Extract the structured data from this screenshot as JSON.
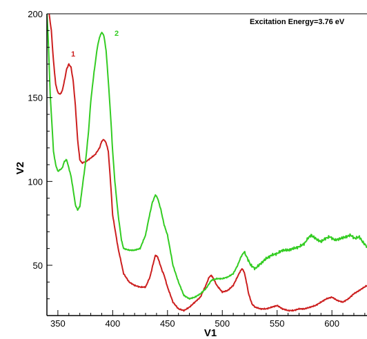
{
  "chart_data": {
    "type": "line",
    "title": "",
    "annotation": "Excitation Energy=3.76 eV",
    "xlabel": "V1",
    "ylabel": "V2",
    "xlim": [
      340,
      632
    ],
    "ylim": [
      20,
      200
    ],
    "x_ticks": [
      350,
      400,
      450,
      500,
      550,
      600
    ],
    "y_ticks": [
      50,
      100,
      150,
      200
    ],
    "grid": false,
    "series": [
      {
        "name": "1",
        "color": "#cc1f1f",
        "x": [
          342,
          344,
          346,
          348,
          350,
          352,
          354,
          356,
          358,
          360,
          362,
          364,
          366,
          368,
          370,
          372,
          376,
          380,
          384,
          388,
          390,
          392,
          394,
          396,
          398,
          400,
          405,
          410,
          415,
          420,
          425,
          430,
          434,
          437,
          439,
          441,
          443,
          445,
          447,
          450,
          455,
          460,
          465,
          470,
          475,
          480,
          485,
          488,
          490,
          492,
          495,
          500,
          505,
          510,
          513,
          516,
          518,
          520,
          522,
          524,
          527,
          530,
          535,
          540,
          545,
          550,
          555,
          560,
          565,
          570,
          575,
          580,
          585,
          590,
          595,
          600,
          605,
          610,
          615,
          620,
          625,
          632
        ],
        "y": [
          200,
          190,
          172,
          158,
          153,
          152,
          154,
          160,
          167,
          170,
          168,
          160,
          145,
          125,
          113,
          111,
          112,
          114,
          116,
          120,
          124,
          125,
          123,
          118,
          100,
          80,
          60,
          45,
          40,
          38,
          37,
          37,
          43,
          51,
          56,
          55,
          51,
          47,
          44,
          37,
          28,
          24,
          23,
          25,
          28,
          31,
          38,
          43,
          44,
          42,
          38,
          34,
          35,
          38,
          42,
          46,
          48,
          46,
          40,
          33,
          27,
          25,
          24,
          24,
          25,
          26,
          24,
          23,
          23,
          24,
          24,
          25,
          26,
          28,
          30,
          31,
          29,
          28,
          30,
          33,
          35,
          38
        ]
      },
      {
        "name": "2",
        "color": "#33cc22",
        "x": [
          340,
          341,
          342,
          343,
          344,
          345,
          346,
          348,
          350,
          352,
          354,
          356,
          358,
          360,
          362,
          364,
          366,
          368,
          370,
          372,
          375,
          378,
          380,
          383,
          386,
          388,
          390,
          392,
          394,
          396,
          398,
          400,
          402,
          405,
          408,
          410,
          415,
          420,
          425,
          430,
          433,
          436,
          439,
          441,
          444,
          447,
          450,
          455,
          460,
          465,
          470,
          475,
          480,
          485,
          490,
          495,
          500,
          505,
          510,
          514,
          517,
          520,
          523,
          526,
          530,
          535,
          540,
          545,
          550,
          555,
          560,
          565,
          570,
          575,
          578,
          581,
          585,
          590,
          594,
          598,
          603,
          608,
          613,
          617,
          621,
          625,
          628,
          632
        ],
        "y": [
          200,
          188,
          170,
          152,
          140,
          130,
          118,
          110,
          106,
          107,
          108,
          112,
          113,
          108,
          103,
          95,
          86,
          83,
          85,
          95,
          110,
          130,
          148,
          165,
          180,
          186,
          189,
          187,
          178,
          160,
          140,
          118,
          100,
          80,
          65,
          60,
          59,
          59,
          60,
          68,
          78,
          87,
          92,
          90,
          83,
          74,
          68,
          50,
          40,
          32,
          30,
          31,
          33,
          36,
          41,
          42,
          42,
          43,
          45,
          50,
          55,
          58,
          54,
          50,
          48,
          51,
          54,
          56,
          57,
          59,
          59,
          60,
          61,
          63,
          66,
          68,
          66,
          64,
          66,
          67,
          65,
          66,
          67,
          68,
          66,
          67,
          64,
          61
        ]
      }
    ]
  }
}
